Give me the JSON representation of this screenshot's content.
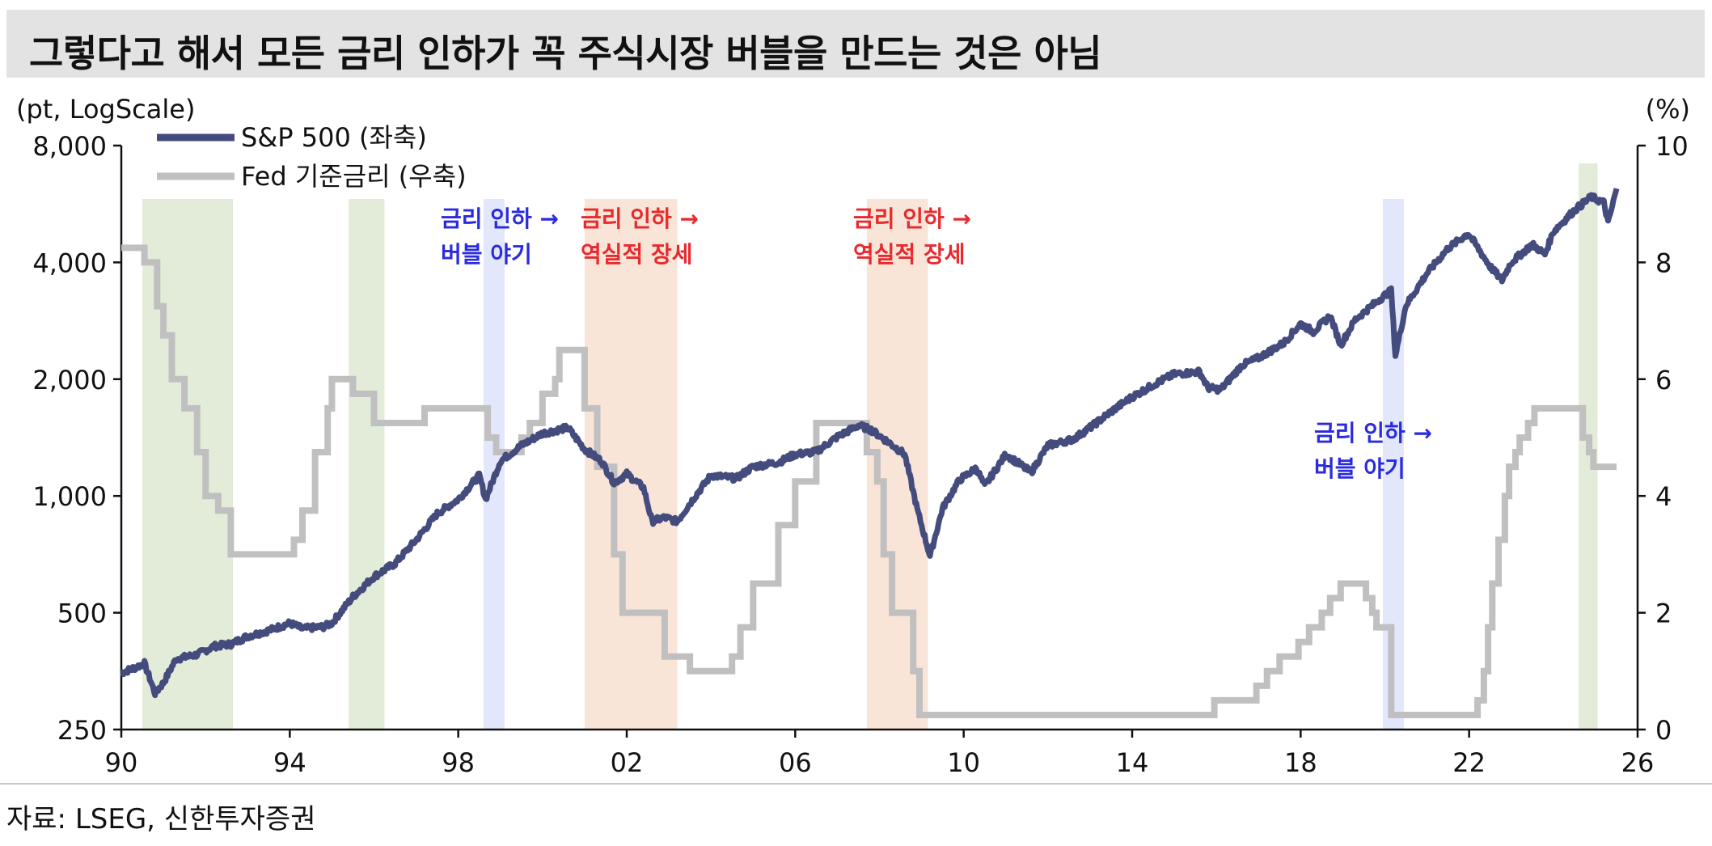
{
  "title": "그렇다고 해서 모든 금리 인하가 꼭 주식시장 버블을 만드는 것은 아님",
  "source": "자료: LSEG, 신한투자증권",
  "colors": {
    "sp500": "#444b7d",
    "fed": "#c0c0c0",
    "shade_green": "#e2ecd8",
    "shade_blue": "#e3e7fb",
    "shade_orange": "#f8e5d7",
    "text_blue": "#2a2ae0",
    "text_red": "#e8292d"
  },
  "chart_data": {
    "type": "line",
    "title": "",
    "y_left_label": "(pt, LogScale)",
    "y_right_label": "(%)",
    "x_ticks": [
      "90",
      "94",
      "98",
      "02",
      "06",
      "10",
      "14",
      "18",
      "22",
      "26"
    ],
    "x_tick_values": [
      1990,
      1994,
      1998,
      2002,
      2006,
      2010,
      2014,
      2018,
      2022,
      2026
    ],
    "y_left_ticks": [
      "250",
      "500",
      "1,000",
      "2,000",
      "4,000",
      "8,000"
    ],
    "y_left_tick_values": [
      250,
      500,
      1000,
      2000,
      4000,
      8000
    ],
    "y_left_scale": "log",
    "y_left_lim": [
      250,
      8000
    ],
    "y_right_ticks": [
      "0",
      "2",
      "4",
      "6",
      "8",
      "10"
    ],
    "y_right_tick_values": [
      0,
      2,
      4,
      6,
      8,
      10
    ],
    "y_right_lim": [
      0,
      10
    ],
    "xlim": [
      1990,
      2026
    ],
    "legend": {
      "placement": "top-left",
      "items": [
        {
          "label": "S&P 500 (좌축)",
          "series": "sp500"
        },
        {
          "label": "Fed 기준금리 (우축)",
          "series": "fed"
        }
      ]
    },
    "shaded_periods": [
      {
        "start": 1990.5,
        "end": 1992.65,
        "color": "shade_green"
      },
      {
        "start": 1995.4,
        "end": 1996.25,
        "color": "shade_green"
      },
      {
        "start": 1998.6,
        "end": 1999.1,
        "color": "shade_blue"
      },
      {
        "start": 2001.0,
        "end": 2003.2,
        "color": "shade_orange"
      },
      {
        "start": 2007.7,
        "end": 2009.15,
        "color": "shade_orange"
      },
      {
        "start": 2019.95,
        "end": 2020.45,
        "color": "shade_blue"
      },
      {
        "start": 2024.6,
        "end": 2025.05,
        "color": "shade_green"
      }
    ],
    "annotations": [
      {
        "lines": [
          "금리 인하 →",
          "버블 야기"
        ],
        "color": "text_blue"
      },
      {
        "lines": [
          "금리 인하 →",
          "역실적 장세"
        ],
        "color": "text_red"
      },
      {
        "lines": [
          "금리 인하 →",
          "역실적 장세"
        ],
        "color": "text_red"
      },
      {
        "lines": [
          "금리 인하 →",
          "버블 야기"
        ],
        "color": "text_blue"
      }
    ],
    "series": [
      {
        "name": "S&P 500 (좌축)",
        "key": "sp500",
        "axis": "left",
        "points": [
          [
            1990.0,
            350
          ],
          [
            1990.3,
            360
          ],
          [
            1990.55,
            370
          ],
          [
            1990.8,
            310
          ],
          [
            1991.0,
            330
          ],
          [
            1991.3,
            380
          ],
          [
            1991.8,
            390
          ],
          [
            1992.2,
            410
          ],
          [
            1992.6,
            415
          ],
          [
            1993.0,
            435
          ],
          [
            1993.5,
            450
          ],
          [
            1994.0,
            470
          ],
          [
            1994.3,
            455
          ],
          [
            1994.8,
            460
          ],
          [
            1995.0,
            470
          ],
          [
            1995.5,
            550
          ],
          [
            1996.0,
            620
          ],
          [
            1996.5,
            670
          ],
          [
            1997.0,
            770
          ],
          [
            1997.5,
            900
          ],
          [
            1998.0,
            980
          ],
          [
            1998.5,
            1130
          ],
          [
            1998.65,
            980
          ],
          [
            1999.0,
            1230
          ],
          [
            1999.5,
            1350
          ],
          [
            2000.0,
            1450
          ],
          [
            2000.6,
            1500
          ],
          [
            2001.0,
            1320
          ],
          [
            2001.4,
            1230
          ],
          [
            2001.7,
            1080
          ],
          [
            2002.0,
            1140
          ],
          [
            2002.4,
            1050
          ],
          [
            2002.6,
            860
          ],
          [
            2002.9,
            880
          ],
          [
            2003.2,
            860
          ],
          [
            2003.6,
            990
          ],
          [
            2004.0,
            1130
          ],
          [
            2004.6,
            1110
          ],
          [
            2005.0,
            1190
          ],
          [
            2005.6,
            1220
          ],
          [
            2006.0,
            1280
          ],
          [
            2006.5,
            1300
          ],
          [
            2007.0,
            1420
          ],
          [
            2007.5,
            1520
          ],
          [
            2007.8,
            1480
          ],
          [
            2008.2,
            1380
          ],
          [
            2008.6,
            1280
          ],
          [
            2008.9,
            920
          ],
          [
            2009.2,
            700
          ],
          [
            2009.5,
            930
          ],
          [
            2009.9,
            1100
          ],
          [
            2010.3,
            1180
          ],
          [
            2010.5,
            1060
          ],
          [
            2011.0,
            1280
          ],
          [
            2011.6,
            1150
          ],
          [
            2012.0,
            1350
          ],
          [
            2012.6,
            1400
          ],
          [
            2013.0,
            1500
          ],
          [
            2013.6,
            1680
          ],
          [
            2014.0,
            1800
          ],
          [
            2014.6,
            1960
          ],
          [
            2015.0,
            2060
          ],
          [
            2015.6,
            2090
          ],
          [
            2015.8,
            1900
          ],
          [
            2016.1,
            1880
          ],
          [
            2016.6,
            2170
          ],
          [
            2017.0,
            2270
          ],
          [
            2017.6,
            2480
          ],
          [
            2018.0,
            2780
          ],
          [
            2018.3,
            2650
          ],
          [
            2018.7,
            2910
          ],
          [
            2018.95,
            2450
          ],
          [
            2019.3,
            2850
          ],
          [
            2019.9,
            3230
          ],
          [
            2020.15,
            3380
          ],
          [
            2020.25,
            2300
          ],
          [
            2020.5,
            3100
          ],
          [
            2021.0,
            3750
          ],
          [
            2021.5,
            4350
          ],
          [
            2021.98,
            4750
          ],
          [
            2022.5,
            3900
          ],
          [
            2022.78,
            3600
          ],
          [
            2023.0,
            4000
          ],
          [
            2023.5,
            4450
          ],
          [
            2023.8,
            4200
          ],
          [
            2024.0,
            4800
          ],
          [
            2024.5,
            5450
          ],
          [
            2024.9,
            5900
          ],
          [
            2025.2,
            5700
          ],
          [
            2025.3,
            5050
          ],
          [
            2025.5,
            6200
          ]
        ]
      },
      {
        "name": "Fed 기준금리 (우축)",
        "key": "fed",
        "axis": "right",
        "points": [
          [
            1990.0,
            8.25
          ],
          [
            1990.55,
            8.0
          ],
          [
            1990.85,
            7.25
          ],
          [
            1991.0,
            6.75
          ],
          [
            1991.2,
            6.0
          ],
          [
            1991.5,
            5.5
          ],
          [
            1991.8,
            4.75
          ],
          [
            1992.0,
            4.0
          ],
          [
            1992.3,
            3.75
          ],
          [
            1992.6,
            3.0
          ],
          [
            1993.5,
            3.0
          ],
          [
            1994.1,
            3.25
          ],
          [
            1994.3,
            3.75
          ],
          [
            1994.6,
            4.75
          ],
          [
            1994.9,
            5.5
          ],
          [
            1995.0,
            6.0
          ],
          [
            1995.5,
            5.75
          ],
          [
            1996.0,
            5.25
          ],
          [
            1997.2,
            5.5
          ],
          [
            1998.7,
            5.0
          ],
          [
            1998.9,
            4.75
          ],
          [
            1999.5,
            5.0
          ],
          [
            1999.7,
            5.25
          ],
          [
            2000.0,
            5.75
          ],
          [
            2000.3,
            6.0
          ],
          [
            2000.4,
            6.5
          ],
          [
            2001.0,
            5.5
          ],
          [
            2001.3,
            4.5
          ],
          [
            2001.7,
            3.0
          ],
          [
            2001.9,
            2.0
          ],
          [
            2002.9,
            1.25
          ],
          [
            2003.5,
            1.0
          ],
          [
            2004.5,
            1.25
          ],
          [
            2004.7,
            1.75
          ],
          [
            2005.0,
            2.5
          ],
          [
            2005.6,
            3.5
          ],
          [
            2006.0,
            4.25
          ],
          [
            2006.5,
            5.25
          ],
          [
            2007.7,
            4.75
          ],
          [
            2007.95,
            4.25
          ],
          [
            2008.1,
            3.0
          ],
          [
            2008.3,
            2.0
          ],
          [
            2008.8,
            1.0
          ],
          [
            2008.95,
            0.25
          ],
          [
            2015.95,
            0.5
          ],
          [
            2016.95,
            0.75
          ],
          [
            2017.2,
            1.0
          ],
          [
            2017.5,
            1.25
          ],
          [
            2017.95,
            1.5
          ],
          [
            2018.2,
            1.75
          ],
          [
            2018.5,
            2.0
          ],
          [
            2018.7,
            2.25
          ],
          [
            2018.95,
            2.5
          ],
          [
            2019.55,
            2.25
          ],
          [
            2019.7,
            2.0
          ],
          [
            2019.8,
            1.75
          ],
          [
            2020.15,
            0.25
          ],
          [
            2022.2,
            0.5
          ],
          [
            2022.35,
            1.0
          ],
          [
            2022.45,
            1.75
          ],
          [
            2022.55,
            2.5
          ],
          [
            2022.7,
            3.25
          ],
          [
            2022.85,
            4.0
          ],
          [
            2022.95,
            4.5
          ],
          [
            2023.1,
            4.75
          ],
          [
            2023.2,
            5.0
          ],
          [
            2023.4,
            5.25
          ],
          [
            2023.55,
            5.5
          ],
          [
            2024.7,
            5.0
          ],
          [
            2024.85,
            4.75
          ],
          [
            2024.95,
            4.5
          ],
          [
            2025.5,
            4.5
          ]
        ]
      }
    ]
  }
}
